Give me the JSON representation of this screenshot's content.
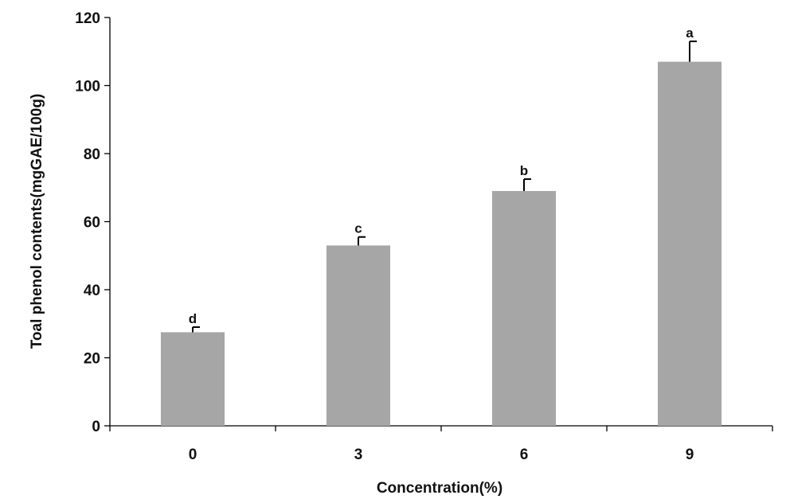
{
  "chart_data": {
    "type": "bar",
    "categories": [
      "0",
      "3",
      "6",
      "9"
    ],
    "values": [
      27.5,
      53,
      69,
      107
    ],
    "errors": [
      1.5,
      2.5,
      3.5,
      6
    ],
    "significance": [
      "d",
      "c",
      "b",
      "a"
    ],
    "xlabel": "Concentration(%)",
    "ylabel": "Toal phenol contents(mgGAE/100g)",
    "ylim": [
      0,
      120
    ],
    "yticks": [
      0,
      20,
      40,
      60,
      80,
      100,
      120
    ],
    "grid": false,
    "bar_color": "#a6a6a6"
  }
}
